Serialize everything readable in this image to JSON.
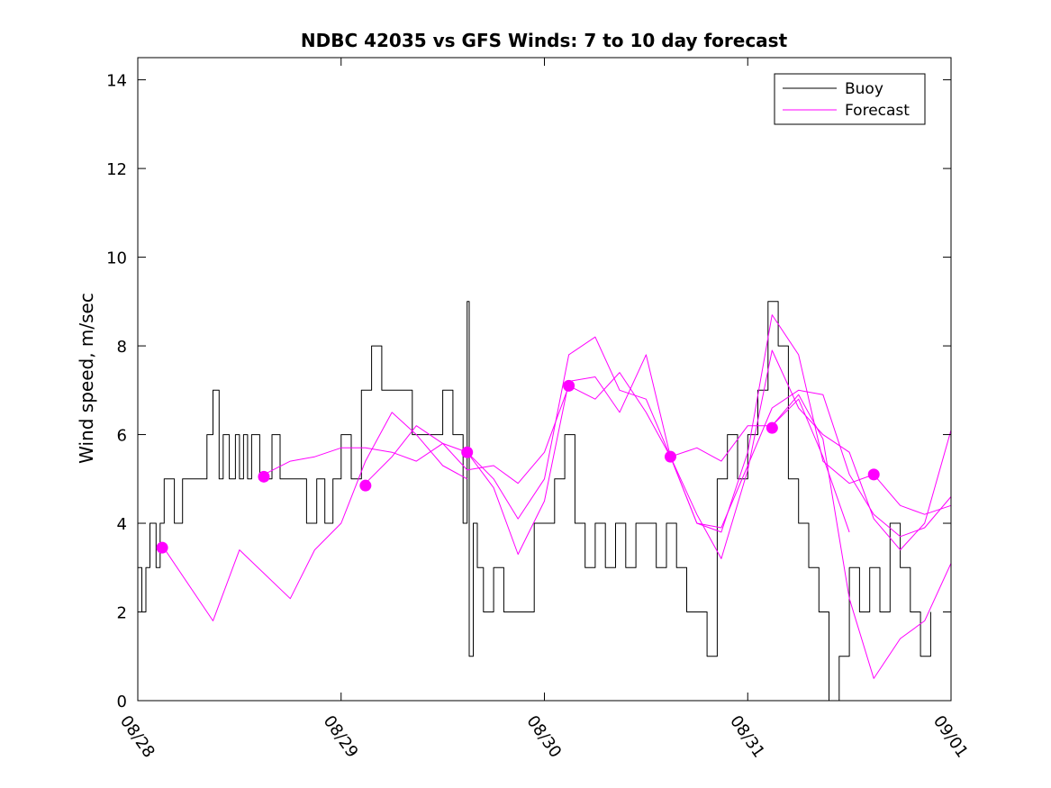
{
  "chart_data": {
    "type": "line",
    "title": "NDBC 42035 vs GFS Winds: 7 to 10 day forecast",
    "xlabel": "",
    "ylabel": "Wind speed, m/sec",
    "xlim": [
      0,
      4
    ],
    "ylim": [
      0,
      14.5
    ],
    "xticks": [
      0,
      1,
      2,
      3,
      4
    ],
    "xtick_labels": [
      "08/28",
      "08/29",
      "08/30",
      "08/31",
      "09/01"
    ],
    "yticks": [
      0,
      2,
      4,
      6,
      8,
      10,
      12,
      14
    ],
    "ytick_labels": [
      "0",
      "2",
      "4",
      "6",
      "8",
      "10",
      "12",
      "14"
    ],
    "grid": false,
    "legend": {
      "position": "top-right",
      "entries": [
        "Buoy",
        "Forecast"
      ]
    },
    "colors": {
      "buoy": "#000000",
      "forecast": "#ff00ff"
    },
    "series": [
      {
        "name": "Buoy",
        "style": "step",
        "x": [
          0,
          0.02,
          0.04,
          0.06,
          0.09,
          0.11,
          0.13,
          0.18,
          0.22,
          0.28,
          0.34,
          0.37,
          0.4,
          0.42,
          0.45,
          0.48,
          0.5,
          0.52,
          0.54,
          0.56,
          0.6,
          0.66,
          0.7,
          0.75,
          0.8,
          0.83,
          0.88,
          0.92,
          0.96,
          1.0,
          1.05,
          1.1,
          1.15,
          1.2,
          1.25,
          1.3,
          1.35,
          1.4,
          1.45,
          1.5,
          1.55,
          1.6,
          1.62,
          1.63,
          1.65,
          1.67,
          1.7,
          1.75,
          1.8,
          1.85,
          1.9,
          1.95,
          2.0,
          2.05,
          2.1,
          2.15,
          2.2,
          2.25,
          2.3,
          2.35,
          2.4,
          2.45,
          2.5,
          2.55,
          2.6,
          2.65,
          2.7,
          2.75,
          2.8,
          2.85,
          2.9,
          2.95,
          3.0,
          3.05,
          3.1,
          3.15,
          3.2,
          3.25,
          3.3,
          3.35,
          3.4,
          3.45,
          3.5,
          3.55,
          3.6,
          3.65,
          3.7,
          3.75,
          3.8,
          3.85,
          3.9
        ],
        "values": [
          3,
          2,
          3,
          4,
          3,
          4,
          5,
          4,
          5,
          5,
          6,
          7,
          5,
          6,
          5,
          6,
          5,
          6,
          5,
          6,
          5,
          6,
          5,
          5,
          5,
          4,
          5,
          4,
          5,
          6,
          5,
          7,
          8,
          7,
          7,
          7,
          6,
          6,
          6,
          7,
          6,
          4,
          9,
          1,
          4,
          3,
          2,
          3,
          2,
          2,
          2,
          4,
          4,
          5,
          6,
          4,
          3,
          4,
          3,
          4,
          3,
          4,
          4,
          3,
          4,
          3,
          2,
          2,
          1,
          5,
          6,
          5,
          6,
          7,
          9,
          8,
          5,
          4,
          3,
          2,
          0,
          1,
          3,
          2,
          3,
          2,
          4,
          3,
          2,
          1,
          2
        ]
      },
      {
        "name": "Forecast",
        "x": [
          0.12,
          0.37,
          0.5,
          0.75,
          0.87,
          1.0,
          1.12,
          1.25,
          1.37,
          1.5,
          1.62
        ],
        "values": [
          3.5,
          1.8,
          3.4,
          2.3,
          3.4,
          4.0,
          5.4,
          6.5,
          6.0,
          5.3,
          5.0
        ]
      },
      {
        "name": "Forecast",
        "x": [
          0.62,
          0.75,
          0.87,
          1.0,
          1.12,
          1.25,
          1.37,
          1.5,
          1.62,
          1.75,
          1.87,
          2.0,
          2.12
        ],
        "values": [
          5.1,
          5.4,
          5.5,
          5.7,
          5.7,
          5.6,
          5.4,
          5.8,
          5.2,
          5.3,
          4.9,
          5.6,
          7.1
        ]
      },
      {
        "name": "Forecast",
        "x": [
          1.12,
          1.25,
          1.37,
          1.5,
          1.62,
          1.75,
          1.87,
          2.0,
          2.12,
          2.25,
          2.37,
          2.5,
          2.62
        ],
        "values": [
          4.9,
          5.5,
          6.2,
          5.8,
          5.6,
          5.0,
          4.1,
          5.0,
          7.8,
          8.2,
          7.0,
          6.8,
          5.5
        ]
      },
      {
        "name": "Forecast",
        "x": [
          1.62,
          1.75,
          1.87,
          2.0,
          2.12,
          2.25,
          2.37,
          2.5,
          2.62,
          2.75,
          2.87,
          3.0,
          3.12
        ],
        "values": [
          5.6,
          4.8,
          3.3,
          4.5,
          7.2,
          7.3,
          6.5,
          7.8,
          5.5,
          5.7,
          5.4,
          6.2,
          6.2
        ]
      },
      {
        "name": "Forecast",
        "x": [
          2.12,
          2.25,
          2.37,
          2.5,
          2.62,
          2.75,
          2.87,
          3.0,
          3.12,
          3.25,
          3.37,
          3.5,
          3.62
        ],
        "values": [
          7.1,
          6.8,
          7.4,
          6.5,
          5.5,
          4.0,
          3.8,
          5.6,
          8.7,
          7.8,
          5.4,
          4.9,
          5.1
        ]
      },
      {
        "name": "Forecast",
        "x": [
          2.62,
          2.75,
          2.87,
          3.0,
          3.12,
          3.25,
          3.37,
          3.5,
          3.62,
          3.75,
          3.87,
          4.0
        ],
        "values": [
          5.5,
          4.2,
          3.2,
          5.2,
          7.9,
          6.6,
          6.0,
          5.6,
          4.1,
          3.4,
          4.0,
          6.1
        ]
      },
      {
        "name": "Forecast",
        "x": [
          2.62,
          2.75,
          2.87,
          3.0,
          3.12,
          3.25,
          3.37,
          3.5,
          3.62,
          3.75,
          3.87,
          4.0
        ],
        "values": [
          5.5,
          4.0,
          3.9,
          5.3,
          6.6,
          7.0,
          6.9,
          5.1,
          4.2,
          3.7,
          3.9,
          4.6
        ]
      },
      {
        "name": "Forecast",
        "x": [
          3.12,
          3.25,
          3.37,
          3.5,
          3.62,
          3.75,
          3.87,
          4.0
        ],
        "values": [
          6.2,
          6.9,
          5.9,
          2.3,
          0.5,
          1.4,
          1.8,
          3.1
        ]
      },
      {
        "name": "Forecast",
        "x": [
          3.12,
          3.25,
          3.37,
          3.5
        ],
        "values": [
          6.2,
          6.8,
          5.5,
          3.8
        ]
      },
      {
        "name": "Forecast",
        "x": [
          3.62,
          3.75,
          3.87,
          4.0
        ],
        "values": [
          5.1,
          4.4,
          4.2,
          4.4
        ]
      }
    ],
    "forecast_points": {
      "x": [
        0.12,
        0.62,
        1.12,
        1.62,
        2.12,
        2.62,
        3.12,
        3.62
      ],
      "values": [
        3.45,
        5.05,
        4.85,
        5.6,
        7.1,
        5.5,
        6.15,
        5.1
      ]
    }
  }
}
